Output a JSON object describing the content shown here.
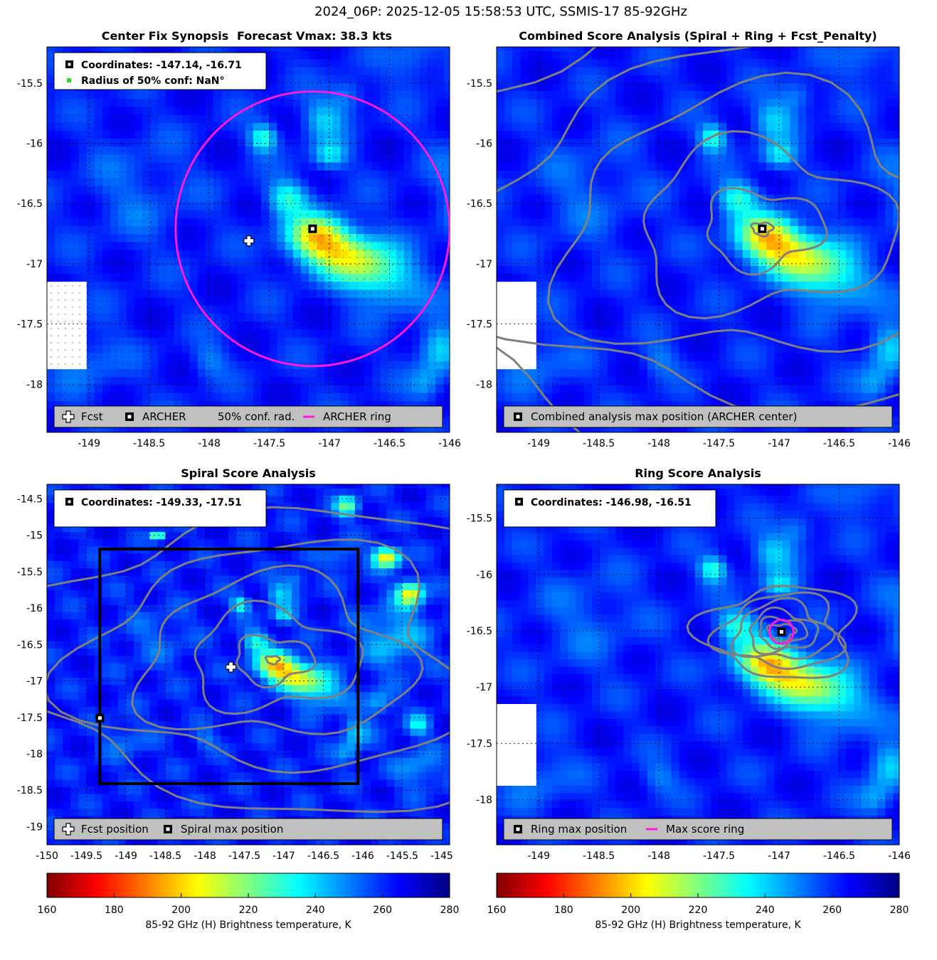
{
  "figure_title": "2024_06P: 2025-12-05 15:58:53 UTC, SSMIS-17 85-92GHz",
  "colors": {
    "archer_ring": "#ff1ad9",
    "contour": "#808080",
    "legend_bg": "#c0c0c0",
    "box": "#000000"
  },
  "colorbar": {
    "label": "85-92 GHz (H) Brightness temperature, K",
    "ticks": [
      "160",
      "180",
      "200",
      "220",
      "240",
      "260",
      "280"
    ],
    "range": [
      160,
      280
    ],
    "colormap": "jet-reversed"
  },
  "panels": [
    {
      "id": "center-fix",
      "title": "Center Fix Synopsis",
      "subtitle": "Forecast Vmax: 38.3 kts",
      "info": [
        "Coordinates: -147.14, -16.71",
        "Radius of 50% conf: NaN°"
      ],
      "legend": [
        "Fcst",
        "ARCHER",
        "50% conf. rad.",
        "ARCHER ring"
      ],
      "xticks": [
        "-149",
        "-148.5",
        "-148",
        "-147.5",
        "-147",
        "-146.5",
        "-146"
      ],
      "yticks": [
        "-15.5",
        "-16",
        "-16.5",
        "-17",
        "-17.5",
        "-18"
      ]
    },
    {
      "id": "combined",
      "title": "Combined Score Analysis (Spiral + Ring + Fcst_Penalty)",
      "legend": [
        "Combined analysis max position (ARCHER center)"
      ],
      "xticks": [
        "-149",
        "-148.5",
        "-148",
        "-147.5",
        "-147",
        "-146.5",
        "-146"
      ],
      "yticks": [
        "-15.5",
        "-16",
        "-16.5",
        "-17",
        "-17.5",
        "-18"
      ]
    },
    {
      "id": "spiral",
      "title": "Spiral Score Analysis",
      "info": [
        "Coordinates: -149.33, -17.51"
      ],
      "legend": [
        "Fcst position",
        "Spiral max position"
      ],
      "xticks": [
        "-150",
        "-149.5",
        "-149",
        "-148.5",
        "-148",
        "-147.5",
        "-147",
        "-146.5",
        "-146",
        "-145.5",
        "-145"
      ],
      "yticks": [
        "-14.5",
        "-15",
        "-15.5",
        "-16",
        "-16.5",
        "-17",
        "-17.5",
        "-18",
        "-18.5",
        "-19"
      ]
    },
    {
      "id": "ring",
      "title": "Ring Score Analysis",
      "info": [
        "Coordinates: -146.98, -16.51"
      ],
      "legend": [
        "Ring max position",
        "Max score ring"
      ],
      "xticks": [
        "-149",
        "-148.5",
        "-148",
        "-147.5",
        "-147",
        "-146.5",
        "-146"
      ],
      "yticks": [
        "-15.5",
        "-16",
        "-16.5",
        "-17",
        "-17.5",
        "-18"
      ]
    }
  ],
  "chart_data": [
    {
      "type": "heatmap",
      "panel": "center-fix",
      "title": "Center Fix Synopsis",
      "xlim": [
        -149.35,
        -146.0
      ],
      "ylim": [
        -18.4,
        -15.2
      ],
      "grid": true,
      "points": {
        "fcst": [
          -147.67,
          -16.81
        ],
        "archer": [
          -147.14,
          -16.71
        ]
      },
      "archer_ring": {
        "center": [
          -147.14,
          -16.71
        ],
        "radius_deg": 1.14
      }
    },
    {
      "type": "heatmap",
      "panel": "combined",
      "title": "Combined Score Analysis (Spiral + Ring + Fcst_Penalty)",
      "xlim": [
        -149.35,
        -146.0
      ],
      "ylim": [
        -18.4,
        -15.2
      ],
      "grid": true,
      "points": {
        "archer": [
          -147.14,
          -16.71
        ]
      }
    },
    {
      "type": "heatmap",
      "panel": "spiral",
      "title": "Spiral Score Analysis",
      "xlim": [
        -150.0,
        -144.9
      ],
      "ylim": [
        -19.25,
        -14.3
      ],
      "grid": true,
      "points": {
        "fcst": [
          -147.67,
          -16.81
        ],
        "spiral_max": [
          -149.33,
          -17.51
        ]
      },
      "search_box": {
        "lon": [
          -149.33,
          -146.06
        ],
        "lat": [
          -18.41,
          -15.19
        ]
      }
    },
    {
      "type": "heatmap",
      "panel": "ring",
      "title": "Ring Score Analysis",
      "xlim": [
        -149.35,
        -146.0
      ],
      "ylim": [
        -18.4,
        -15.2
      ],
      "grid": true,
      "points": {
        "ring_max": [
          -146.98,
          -16.51
        ]
      },
      "max_score_ring": {
        "center": [
          -146.98,
          -16.51
        ],
        "radius_deg": 0.1
      }
    }
  ]
}
